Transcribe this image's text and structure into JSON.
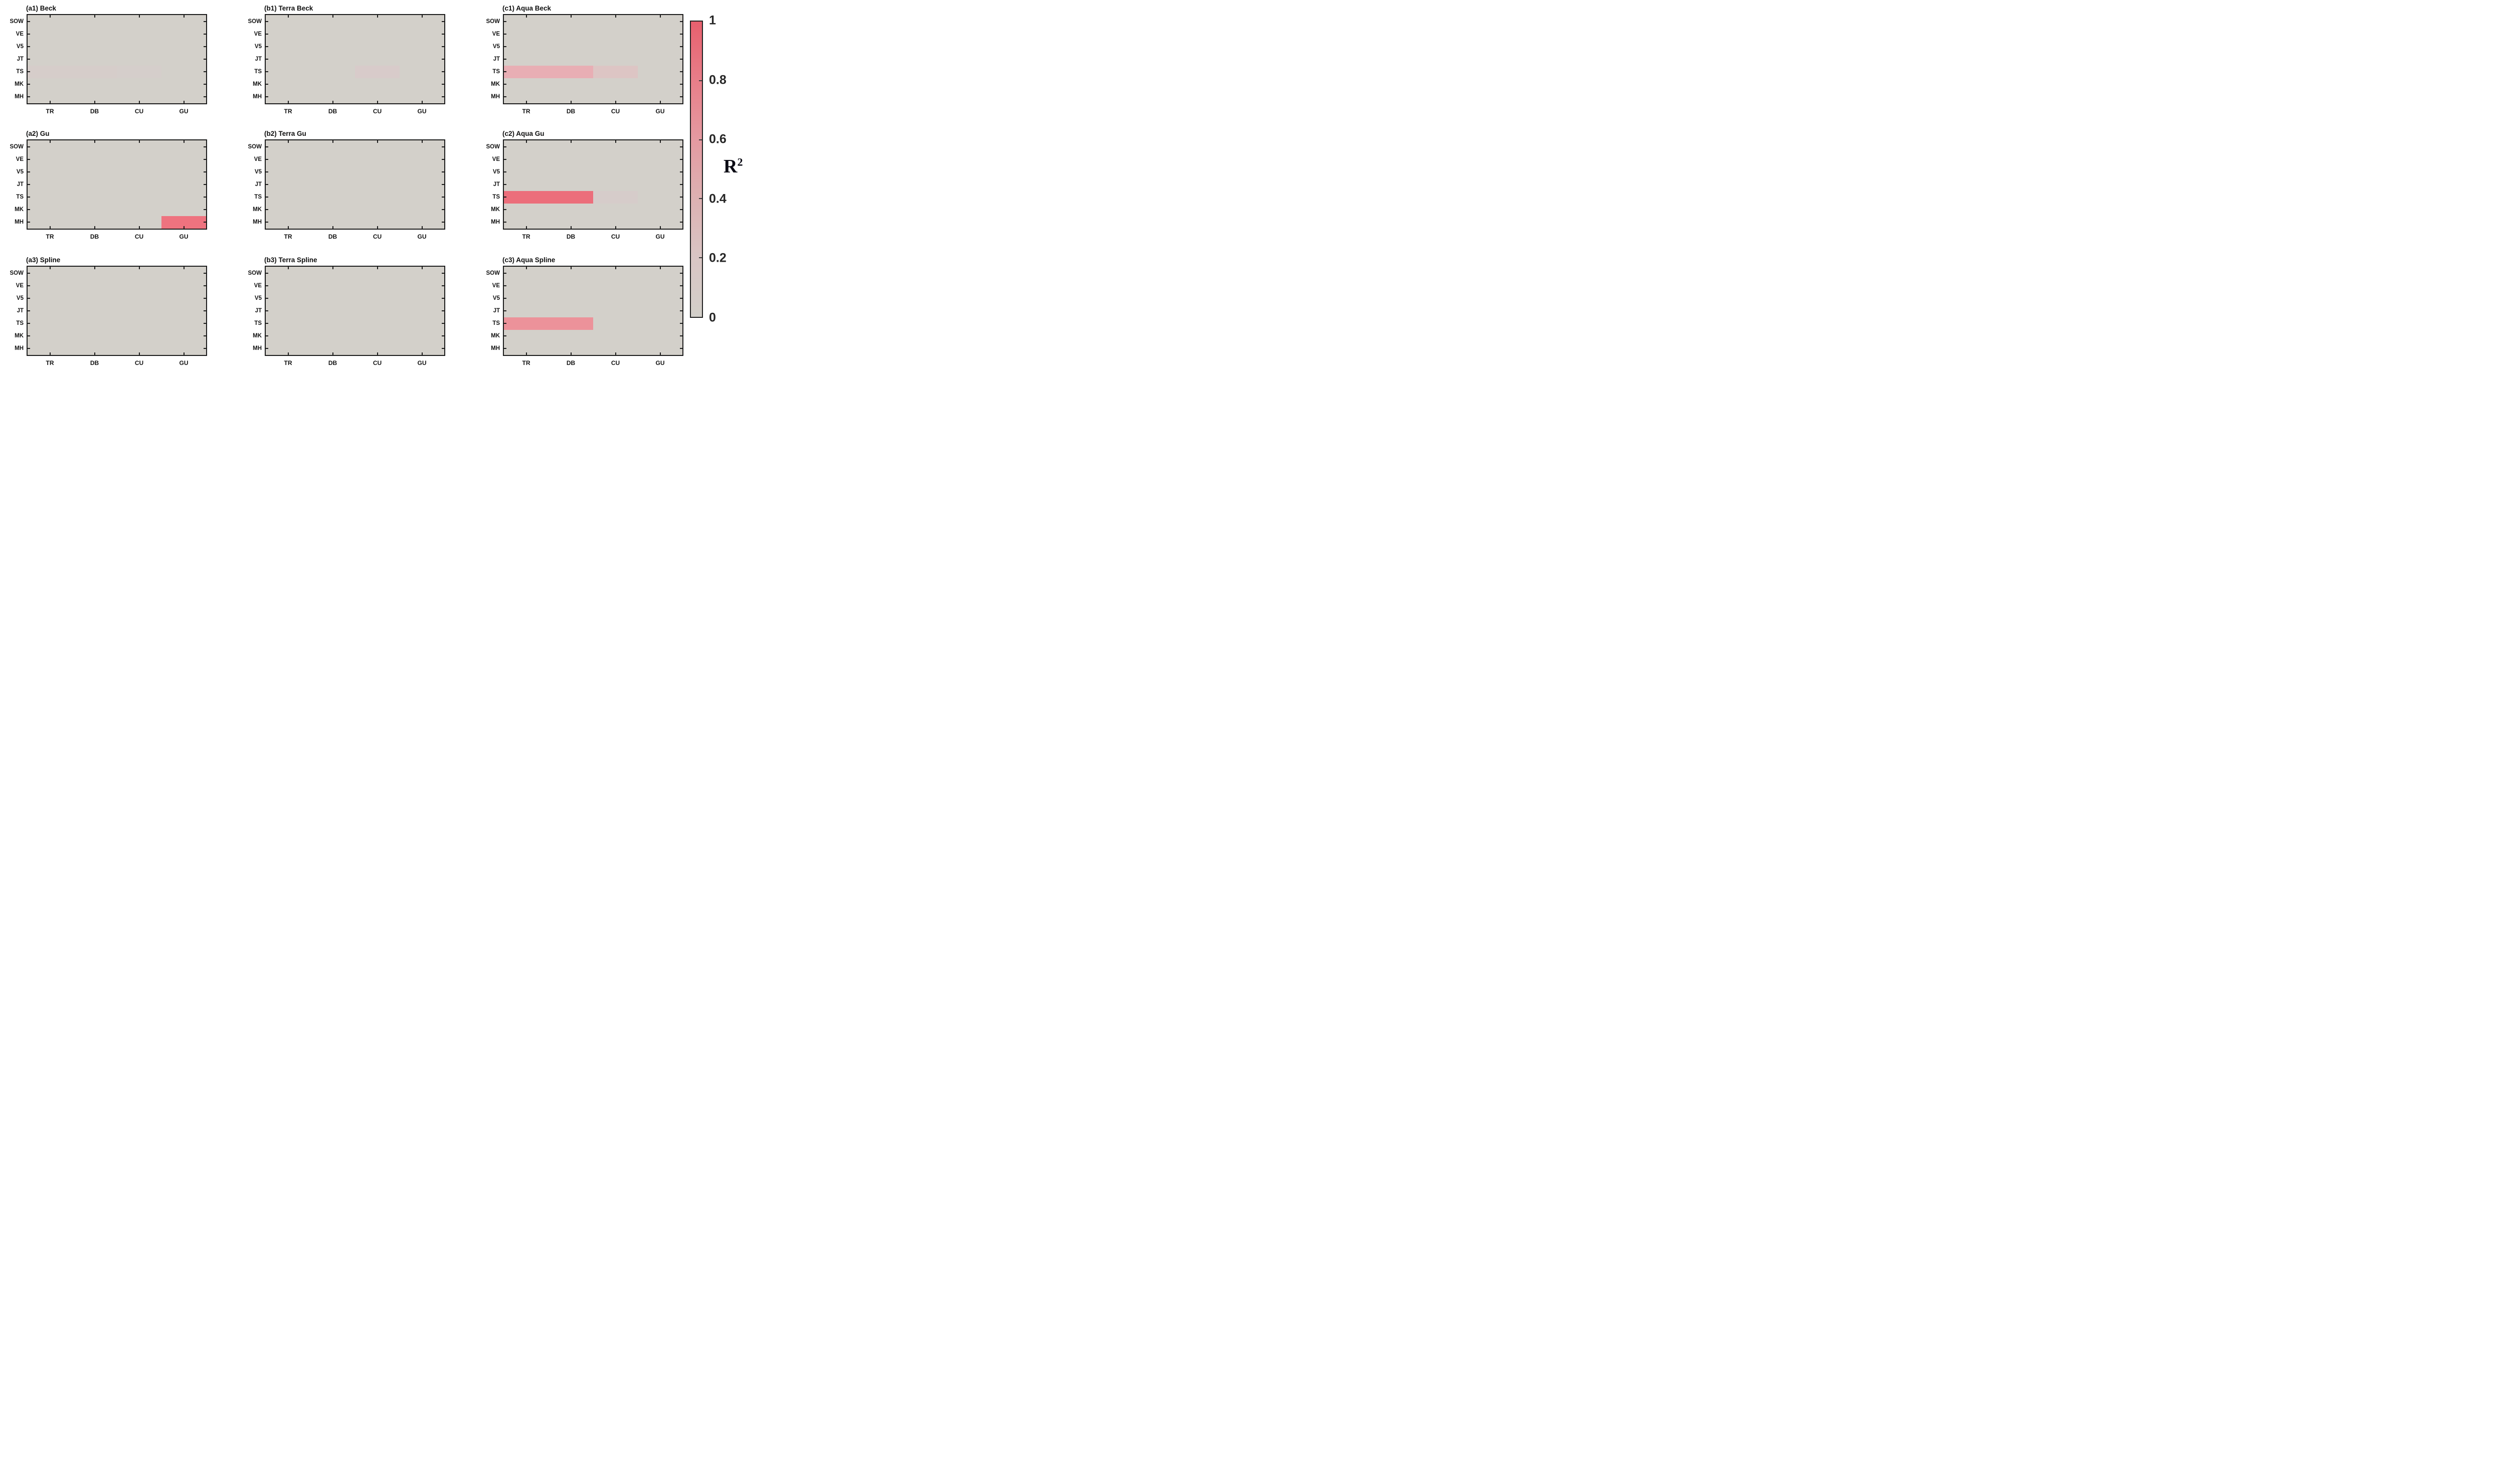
{
  "figure": {
    "background": "#ffffff",
    "plot_background": "#d3d0ca",
    "axis_color": "#1c1c1c",
    "highlight_red": "#ec6e7c"
  },
  "colorbar": {
    "label": "R",
    "label_sup": "2",
    "ticks": [
      "1",
      "0.8",
      "0.6",
      "0.4",
      "0.2",
      "0"
    ],
    "tick_values": [
      1,
      0.8,
      0.6,
      0.4,
      0.2,
      0
    ],
    "gradient": [
      {
        "v": 1,
        "color": "#e8606e"
      },
      {
        "v": 0.8,
        "color": "#e87e89"
      },
      {
        "v": 0.6,
        "color": "#e49aa1"
      },
      {
        "v": 0.4,
        "color": "#ddb1b2"
      },
      {
        "v": 0.2,
        "color": "#d9c5c4"
      },
      {
        "v": 0,
        "color": "#d2cfc9"
      }
    ]
  },
  "chart_data": {
    "type": "heatmap",
    "value_label": "R²",
    "value_range": [
      0,
      1
    ],
    "grid": "3x3 panels",
    "rows": [
      "SOW",
      "VE",
      "V5",
      "JT",
      "TS",
      "MK",
      "MH"
    ],
    "columns": [
      "TR",
      "DB",
      "CU",
      "GU"
    ],
    "default_value": 0,
    "panels": [
      {
        "id": "a1",
        "title": "(a1) Beck",
        "grid_pos": [
          0,
          0
        ],
        "cells": [
          {
            "row": "TS",
            "col": "TR",
            "value": 0.06,
            "color": "#d6cdca"
          },
          {
            "row": "TS",
            "col": "DB",
            "value": 0.06,
            "color": "#d6cdca"
          },
          {
            "row": "TS",
            "col": "CU",
            "value": 0.04,
            "color": "#d5cecb"
          }
        ]
      },
      {
        "id": "b1",
        "title": "(b1) Terra Beck",
        "grid_pos": [
          0,
          1
        ],
        "cells": [
          {
            "row": "TS",
            "col": "CU",
            "value": 0.07,
            "color": "#d8cbca"
          }
        ]
      },
      {
        "id": "c1",
        "title": "(c1) Aqua Beck",
        "grid_pos": [
          0,
          2
        ],
        "cells": [
          {
            "row": "TS",
            "col": "TR",
            "value": 0.4,
            "color": "#e8aeb4"
          },
          {
            "row": "TS",
            "col": "DB",
            "value": 0.4,
            "color": "#e8aeb4"
          },
          {
            "row": "TS",
            "col": "CU",
            "value": 0.15,
            "color": "#ddc5c4"
          }
        ]
      },
      {
        "id": "a2",
        "title": "(a2) Gu",
        "grid_pos": [
          1,
          0
        ],
        "cells": [
          {
            "row": "MH",
            "col": "GU",
            "value": 0.85,
            "color": "#ee737f"
          }
        ]
      },
      {
        "id": "b2",
        "title": "(b2) Terra Gu",
        "grid_pos": [
          1,
          1
        ],
        "cells": []
      },
      {
        "id": "c2",
        "title": "(c2) Aqua Gu",
        "grid_pos": [
          1,
          2
        ],
        "cells": [
          {
            "row": "TS",
            "col": "TR",
            "value": 0.85,
            "color": "#ec6e7b"
          },
          {
            "row": "TS",
            "col": "DB",
            "value": 0.85,
            "color": "#ec6e7b"
          },
          {
            "row": "TS",
            "col": "CU",
            "value": 0.05,
            "color": "#d6ccca"
          }
        ]
      },
      {
        "id": "a3",
        "title": "(a3) Spline",
        "grid_pos": [
          2,
          0
        ],
        "cells": []
      },
      {
        "id": "b3",
        "title": "(b3) Terra Spline",
        "grid_pos": [
          2,
          1
        ],
        "cells": []
      },
      {
        "id": "c3",
        "title": "(c3) Aqua Spline",
        "grid_pos": [
          2,
          2
        ],
        "cells": [
          {
            "row": "TS",
            "col": "TR",
            "value": 0.6,
            "color": "#ec929a"
          },
          {
            "row": "TS",
            "col": "DB",
            "value": 0.6,
            "color": "#ec929a"
          }
        ]
      }
    ]
  }
}
